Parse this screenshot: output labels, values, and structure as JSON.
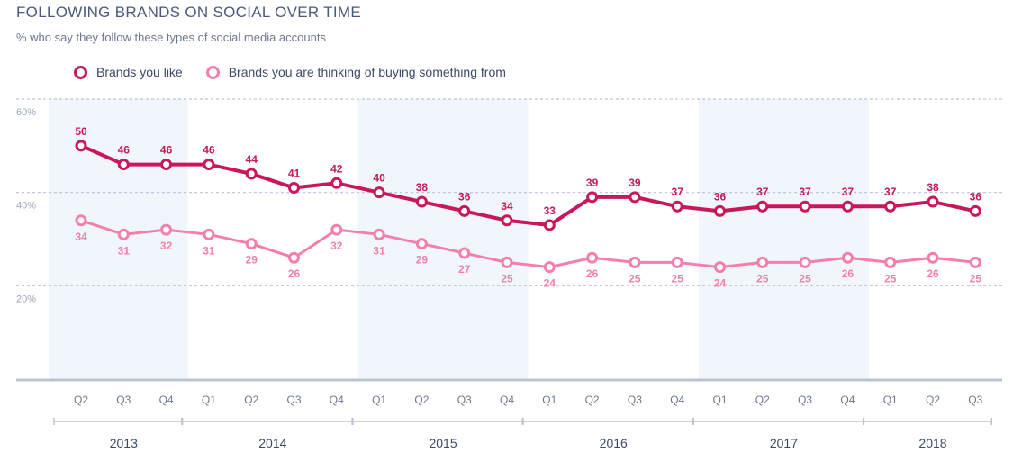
{
  "title": "FOLLOWING BRANDS ON SOCIAL OVER TIME",
  "subtitle": "% who say they follow these types of social media accounts",
  "colors": {
    "series1": "#c8175d",
    "series2": "#f47fae",
    "band": "#f1f5fc",
    "grid": "#b9c4da",
    "axis": "#b9c4da",
    "tick_text": "#6b7890"
  },
  "chart_data": {
    "type": "line",
    "x": [
      "Q2",
      "Q3",
      "Q4",
      "Q1",
      "Q2",
      "Q3",
      "Q4",
      "Q1",
      "Q2",
      "Q3",
      "Q4",
      "Q1",
      "Q2",
      "Q3",
      "Q4",
      "Q1",
      "Q2",
      "Q3",
      "Q4",
      "Q1",
      "Q2",
      "Q3"
    ],
    "years": [
      {
        "label": "2013",
        "quarters": 3
      },
      {
        "label": "2014",
        "quarters": 4
      },
      {
        "label": "2015",
        "quarters": 4
      },
      {
        "label": "2016",
        "quarters": 4
      },
      {
        "label": "2017",
        "quarters": 4
      },
      {
        "label": "2018",
        "quarters": 3
      }
    ],
    "y_ticks": [
      {
        "value": 20,
        "label": "20%"
      },
      {
        "value": 40,
        "label": "40%"
      },
      {
        "value": 60,
        "label": "60%"
      }
    ],
    "ylim": [
      0,
      60
    ],
    "legend_position": "top-left",
    "series": [
      {
        "name": "Brands you like",
        "values": [
          50,
          46,
          46,
          46,
          44,
          41,
          42,
          40,
          38,
          36,
          34,
          33,
          39,
          39,
          37,
          36,
          37,
          37,
          37,
          37,
          38,
          36
        ]
      },
      {
        "name": "Brands you are thinking of buying something from",
        "values": [
          34,
          31,
          32,
          31,
          29,
          26,
          32,
          31,
          29,
          27,
          25,
          24,
          26,
          25,
          25,
          24,
          25,
          25,
          26,
          25,
          26,
          25
        ]
      }
    ]
  }
}
